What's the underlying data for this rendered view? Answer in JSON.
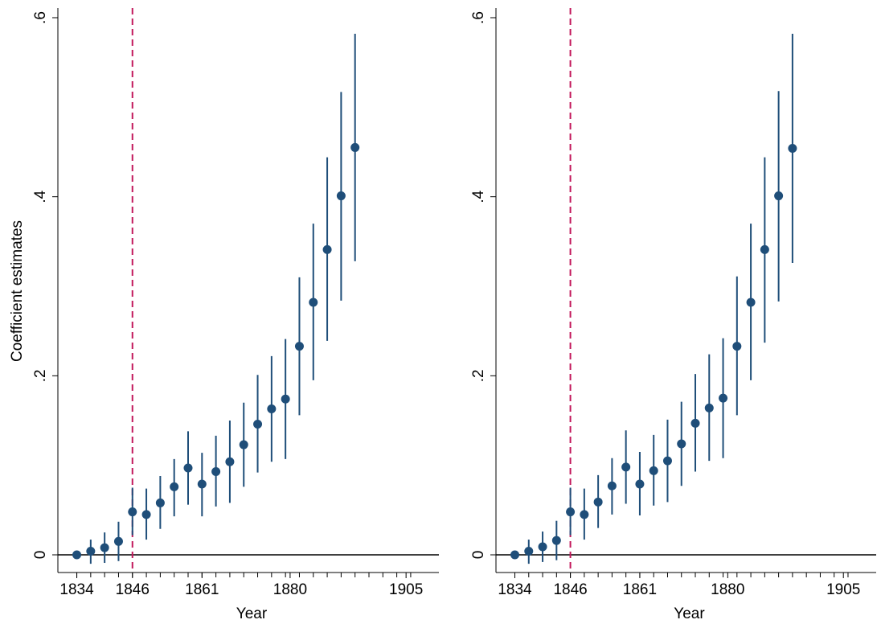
{
  "chart_data": [
    {
      "type": "scatter",
      "panel": "left",
      "xlabel": "Year",
      "ylabel": "Coefficient estimates",
      "xlim": [
        1832,
        1910
      ],
      "ylim": [
        -0.02,
        0.61
      ],
      "x_ticks": [
        1834,
        1846,
        1861,
        1880,
        1905
      ],
      "y_ticks": [
        0,
        0.2,
        0.4,
        0.6
      ],
      "y_tick_labels": [
        "0",
        ".2",
        ".4",
        ".6"
      ],
      "event_line": {
        "x": 1846,
        "color": "#c2185b",
        "style": "dashed"
      },
      "zero_line": 0,
      "point_color": "#1f4e79",
      "points": [
        {
          "x": 1834,
          "y": 0.0,
          "lo": 0.0,
          "hi": 0.0
        },
        {
          "x": 1837,
          "y": 0.004,
          "lo": -0.01,
          "hi": 0.017
        },
        {
          "x": 1840,
          "y": 0.008,
          "lo": -0.009,
          "hi": 0.025
        },
        {
          "x": 1843,
          "y": 0.015,
          "lo": -0.007,
          "hi": 0.037
        },
        {
          "x": 1846,
          "y": 0.048,
          "lo": 0.022,
          "hi": 0.075
        },
        {
          "x": 1849,
          "y": 0.045,
          "lo": 0.017,
          "hi": 0.074
        },
        {
          "x": 1852,
          "y": 0.058,
          "lo": 0.029,
          "hi": 0.088
        },
        {
          "x": 1855,
          "y": 0.076,
          "lo": 0.043,
          "hi": 0.107
        },
        {
          "x": 1858,
          "y": 0.097,
          "lo": 0.056,
          "hi": 0.138
        },
        {
          "x": 1861,
          "y": 0.079,
          "lo": 0.043,
          "hi": 0.114
        },
        {
          "x": 1864,
          "y": 0.093,
          "lo": 0.054,
          "hi": 0.133
        },
        {
          "x": 1867,
          "y": 0.104,
          "lo": 0.058,
          "hi": 0.15
        },
        {
          "x": 1870,
          "y": 0.123,
          "lo": 0.076,
          "hi": 0.17
        },
        {
          "x": 1873,
          "y": 0.146,
          "lo": 0.092,
          "hi": 0.201
        },
        {
          "x": 1876,
          "y": 0.163,
          "lo": 0.104,
          "hi": 0.222
        },
        {
          "x": 1879,
          "y": 0.174,
          "lo": 0.107,
          "hi": 0.241
        },
        {
          "x": 1882,
          "y": 0.233,
          "lo": 0.156,
          "hi": 0.31
        },
        {
          "x": 1885,
          "y": 0.282,
          "lo": 0.195,
          "hi": 0.37
        },
        {
          "x": 1888,
          "y": 0.341,
          "lo": 0.239,
          "hi": 0.444
        },
        {
          "x": 1891,
          "y": 0.401,
          "lo": 0.284,
          "hi": 0.517
        },
        {
          "x": 1894,
          "y": 0.455,
          "lo": 0.328,
          "hi": 0.582
        }
      ]
    },
    {
      "type": "scatter",
      "panel": "right",
      "xlabel": "Year",
      "ylabel": "",
      "xlim": [
        1832,
        1910
      ],
      "ylim": [
        -0.02,
        0.61
      ],
      "x_ticks": [
        1834,
        1846,
        1861,
        1880,
        1905
      ],
      "y_ticks": [
        0,
        0.2,
        0.4,
        0.6
      ],
      "y_tick_labels": [
        "0",
        ".2",
        ".4",
        ".6"
      ],
      "event_line": {
        "x": 1846,
        "color": "#c2185b",
        "style": "dashed"
      },
      "zero_line": 0,
      "point_color": "#1f4e79",
      "points": [
        {
          "x": 1834,
          "y": 0.0,
          "lo": 0.0,
          "hi": 0.0
        },
        {
          "x": 1837,
          "y": 0.004,
          "lo": -0.01,
          "hi": 0.017
        },
        {
          "x": 1840,
          "y": 0.009,
          "lo": -0.008,
          "hi": 0.026
        },
        {
          "x": 1843,
          "y": 0.016,
          "lo": -0.006,
          "hi": 0.038
        },
        {
          "x": 1846,
          "y": 0.048,
          "lo": 0.022,
          "hi": 0.075
        },
        {
          "x": 1849,
          "y": 0.045,
          "lo": 0.017,
          "hi": 0.074
        },
        {
          "x": 1852,
          "y": 0.059,
          "lo": 0.03,
          "hi": 0.089
        },
        {
          "x": 1855,
          "y": 0.077,
          "lo": 0.045,
          "hi": 0.108
        },
        {
          "x": 1858,
          "y": 0.098,
          "lo": 0.057,
          "hi": 0.139
        },
        {
          "x": 1861,
          "y": 0.079,
          "lo": 0.044,
          "hi": 0.115
        },
        {
          "x": 1864,
          "y": 0.094,
          "lo": 0.055,
          "hi": 0.134
        },
        {
          "x": 1867,
          "y": 0.105,
          "lo": 0.059,
          "hi": 0.151
        },
        {
          "x": 1870,
          "y": 0.124,
          "lo": 0.077,
          "hi": 0.171
        },
        {
          "x": 1873,
          "y": 0.147,
          "lo": 0.093,
          "hi": 0.202
        },
        {
          "x": 1876,
          "y": 0.164,
          "lo": 0.105,
          "hi": 0.224
        },
        {
          "x": 1879,
          "y": 0.175,
          "lo": 0.108,
          "hi": 0.242
        },
        {
          "x": 1882,
          "y": 0.233,
          "lo": 0.156,
          "hi": 0.311
        },
        {
          "x": 1885,
          "y": 0.282,
          "lo": 0.195,
          "hi": 0.37
        },
        {
          "x": 1888,
          "y": 0.341,
          "lo": 0.237,
          "hi": 0.444
        },
        {
          "x": 1891,
          "y": 0.401,
          "lo": 0.283,
          "hi": 0.518
        },
        {
          "x": 1894,
          "y": 0.454,
          "lo": 0.326,
          "hi": 0.582
        }
      ]
    }
  ]
}
